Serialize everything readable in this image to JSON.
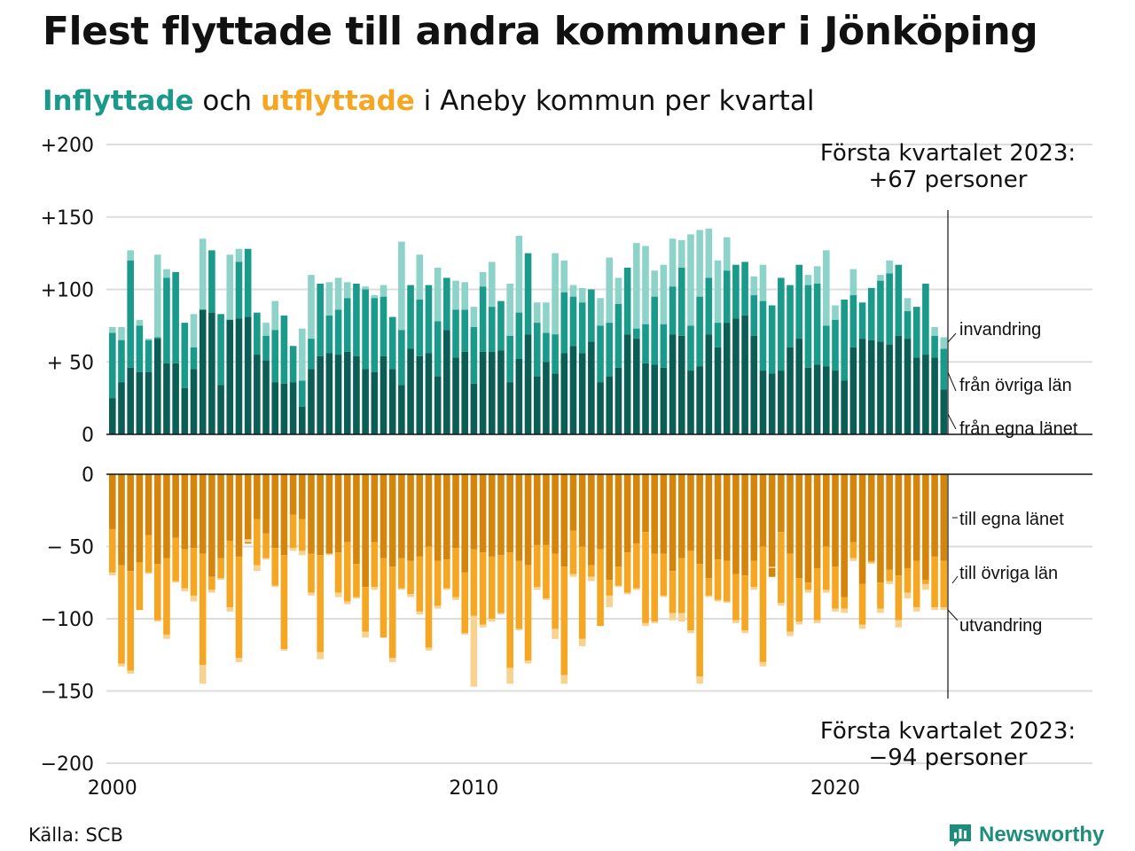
{
  "title": "Flest flyttade till andra kommuner i Jönköping",
  "subtitle": {
    "part1": "Inflyttade",
    "part2": " och ",
    "part3": "utflyttade",
    "part4": " i Aneby kommun per kvartal"
  },
  "source": "Källa: SCB",
  "brand": "Newsworthy",
  "colors": {
    "in_own_lan": "#0b5e55",
    "in_other_lan": "#1a9a8a",
    "in_immigration": "#8ed3c9",
    "out_own_lan": "#d4850b",
    "out_other_lan": "#f5a623",
    "out_emigration": "#f8d28f",
    "grid": "#dddddd"
  },
  "annotations": {
    "top_line1": "Första kvartalet 2023:",
    "top_line2": "+67 personer",
    "bottom_line1": "Första kvartalet 2023:",
    "bottom_line2": "−94 personer"
  },
  "segment_labels": {
    "invandring": "invandring",
    "fran_ovriga": "från övriga län",
    "fran_egna": "från egna länet",
    "till_egna": "till egna länet",
    "till_ovriga": "till övriga län",
    "utvandring": "utvandring"
  },
  "chart_data": {
    "type": "bar",
    "stacked": true,
    "x_start": "2000 Q1",
    "frequency": "quarterly",
    "x_ticks": [
      "2000",
      "2010",
      "2020"
    ],
    "y_ticks_top": [
      "+200",
      "+150",
      "+100",
      "+ 50",
      "0"
    ],
    "y_ticks_bottom": [
      "0",
      "− 50",
      "−100",
      "−150",
      "−200"
    ],
    "ylim_top": [
      0,
      200
    ],
    "ylim_bottom": [
      -200,
      0
    ],
    "grid": true,
    "inflyttade": {
      "from_own_lan": [
        25,
        36,
        46,
        43,
        43,
        66,
        49,
        49,
        32,
        45,
        86,
        84,
        34,
        79,
        80,
        81,
        55,
        51,
        36,
        35,
        36,
        19,
        45,
        54,
        56,
        55,
        57,
        54,
        45,
        43,
        54,
        45,
        34,
        59,
        54,
        56,
        40,
        72,
        53,
        57,
        35,
        57,
        57,
        58,
        36,
        52,
        69,
        40,
        50,
        42,
        56,
        61,
        56,
        64,
        36,
        40,
        46,
        69,
        66,
        49,
        48,
        46,
        69,
        68,
        44,
        47,
        69,
        60,
        77,
        80,
        82,
        68,
        44,
        42,
        44,
        60,
        66,
        46,
        48,
        47,
        44,
        37,
        60,
        66,
        65,
        64,
        62,
        68,
        66,
        53,
        55,
        53,
        31
      ],
      "from_other_lan": [
        70,
        65,
        120,
        75,
        65,
        67,
        108,
        112,
        77,
        60,
        81,
        127,
        83,
        72,
        119,
        128,
        84,
        68,
        72,
        82,
        61,
        37,
        66,
        104,
        82,
        86,
        94,
        104,
        100,
        94,
        95,
        81,
        72,
        103,
        93,
        103,
        78,
        108,
        86,
        86,
        74,
        102,
        88,
        92,
        68,
        84,
        125,
        77,
        70,
        69,
        98,
        95,
        91,
        100,
        75,
        77,
        90,
        115,
        73,
        76,
        95,
        76,
        102,
        115,
        75,
        95,
        108,
        77,
        113,
        117,
        119,
        96,
        92,
        89,
        108,
        103,
        117,
        103,
        104,
        75,
        79,
        93,
        96,
        91,
        101,
        106,
        111,
        117,
        85,
        88,
        104,
        68,
        59
      ],
      "immigration": [
        74,
        74,
        127,
        79,
        66,
        124,
        114,
        80,
        67,
        83,
        135,
        86,
        76,
        124,
        128,
        93,
        70,
        77,
        92,
        66,
        39,
        73,
        110,
        95,
        105,
        108,
        105,
        99,
        102,
        96,
        103,
        73,
        133,
        96,
        124,
        82,
        115,
        88,
        106,
        105,
        88,
        112,
        119,
        84,
        104,
        137,
        87,
        91,
        91,
        125,
        120,
        103,
        101,
        90,
        94,
        122,
        108,
        82,
        132,
        130,
        113,
        117,
        135,
        134,
        138,
        141,
        142,
        120,
        136,
        104,
        119,
        109,
        117,
        83,
        95,
        95,
        102,
        110,
        116,
        127,
        89,
        92,
        114,
        84,
        78,
        110,
        120,
        117,
        94,
        84,
        98,
        74,
        67
      ]
    },
    "utflyttade": {
      "to_own_lan": [
        -38,
        -63,
        -67,
        -61,
        -42,
        -62,
        -58,
        -44,
        -52,
        -51,
        -55,
        -71,
        -58,
        -46,
        -57,
        -48,
        -31,
        -41,
        -51,
        -56,
        -28,
        -31,
        -55,
        -56,
        -55,
        -54,
        -47,
        -62,
        -78,
        -47,
        -58,
        -64,
        -58,
        -60,
        -57,
        -50,
        -60,
        -59,
        -51,
        -68,
        -52,
        -54,
        -57,
        -56,
        -54,
        -60,
        -63,
        -49,
        -49,
        -55,
        -64,
        -39,
        -50,
        -63,
        -52,
        -73,
        -64,
        -54,
        -48,
        -40,
        -55,
        -55,
        -67,
        -58,
        -53,
        -62,
        -72,
        -59,
        -60,
        -69,
        -70,
        -60,
        -50,
        -71,
        -40,
        -55,
        -72,
        -75,
        -65,
        -50,
        -64,
        -85,
        -47,
        -76,
        -60,
        -75,
        -66,
        -70,
        -65,
        -60,
        -73,
        -57,
        -60
      ],
      "to_other_lan": [
        -68,
        -131,
        -136,
        -94,
        -68,
        -101,
        -111,
        -74,
        -79,
        -84,
        -132,
        -80,
        -72,
        -92,
        -127,
        -45,
        -63,
        -58,
        -77,
        -121,
        -51,
        -53,
        -82,
        -123,
        -55,
        -82,
        -88,
        -85,
        -109,
        -78,
        -113,
        -127,
        -79,
        -83,
        -95,
        -120,
        -91,
        -79,
        -85,
        -110,
        -98,
        -104,
        -100,
        -96,
        -134,
        -107,
        -129,
        -78,
        -86,
        -107,
        -139,
        -69,
        -114,
        -71,
        -105,
        -84,
        -77,
        -82,
        -79,
        -103,
        -102,
        -84,
        -96,
        -96,
        -108,
        -140,
        -84,
        -87,
        -88,
        -101,
        -108,
        -78,
        -130,
        -64,
        -89,
        -109,
        -102,
        -80,
        -101,
        -80,
        -93,
        -93,
        -58,
        -104,
        -61,
        -93,
        -74,
        -101,
        -82,
        -92,
        -76,
        -92,
        -92
      ],
      "emigration": [
        -70,
        -133,
        -138,
        -94,
        -69,
        -102,
        -114,
        -75,
        -81,
        -88,
        -145,
        -82,
        -73,
        -95,
        -130,
        -47,
        -67,
        -59,
        -78,
        -122,
        -53,
        -56,
        -84,
        -128,
        -56,
        -85,
        -90,
        -86,
        -113,
        -80,
        -113,
        -130,
        -80,
        -85,
        -97,
        -122,
        -93,
        -80,
        -87,
        -111,
        -147,
        -106,
        -102,
        -97,
        -145,
        -108,
        -131,
        -80,
        -87,
        -114,
        -145,
        -71,
        -119,
        -74,
        -105,
        -92,
        -78,
        -83,
        -80,
        -105,
        -103,
        -85,
        -101,
        -102,
        -110,
        -145,
        -85,
        -88,
        -89,
        -103,
        -110,
        -80,
        -133,
        -65,
        -91,
        -112,
        -104,
        -82,
        -103,
        -82,
        -95,
        -96,
        -60,
        -107,
        -62,
        -96,
        -76,
        -106,
        -86,
        -95,
        -80,
        -94,
        -94
      ]
    }
  }
}
